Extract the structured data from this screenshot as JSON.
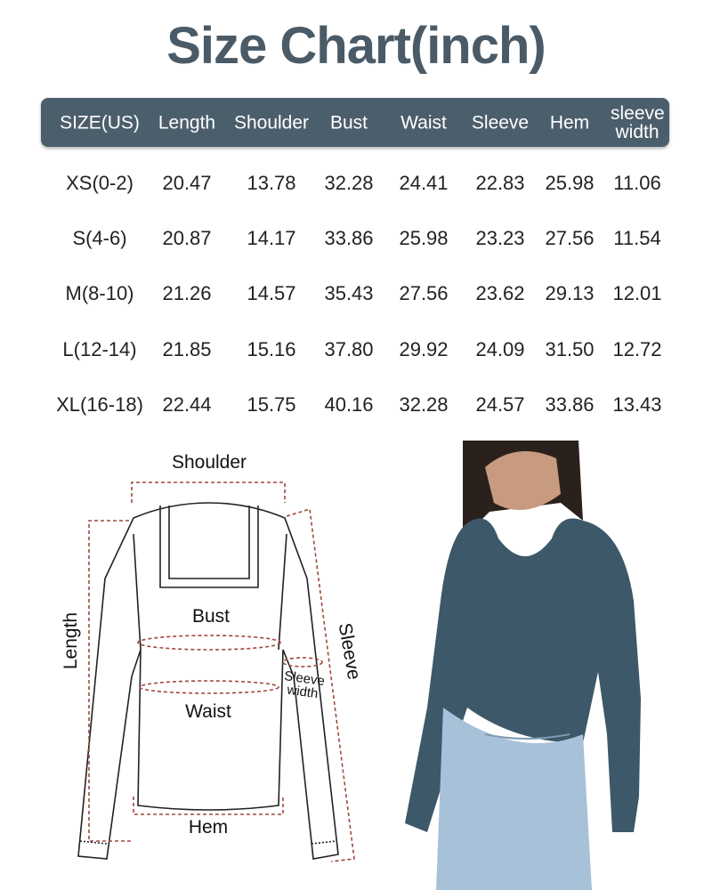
{
  "title": "Size Chart(inch)",
  "table": {
    "headers": [
      "SIZE(US)",
      "Length",
      "Shoulder",
      "Bust",
      "Waist",
      "Sleeve",
      "Hem",
      "sleeve width"
    ],
    "rows": [
      [
        "XS(0-2)",
        "20.47",
        "13.78",
        "32.28",
        "24.41",
        "22.83",
        "25.98",
        "11.06"
      ],
      [
        "S(4-6)",
        "20.87",
        "14.17",
        "33.86",
        "25.98",
        "23.23",
        "27.56",
        "11.54"
      ],
      [
        "M(8-10)",
        "21.26",
        "14.57",
        "35.43",
        "27.56",
        "23.62",
        "29.13",
        "12.01"
      ],
      [
        "L(12-14)",
        "21.85",
        "15.16",
        "37.80",
        "29.92",
        "24.09",
        "31.50",
        "12.72"
      ],
      [
        "XL(16-18)",
        "22.44",
        "15.75",
        "40.16",
        "32.28",
        "24.57",
        "33.86",
        "13.43"
      ]
    ]
  },
  "diagram": {
    "shoulder": "Shoulder",
    "bust": "Bust",
    "waist": "Waist",
    "hem": "Hem",
    "length": "Length",
    "sleeve": "Sleeve",
    "sleeve_width_1": "Sleeve",
    "sleeve_width_2": "width"
  },
  "colors": {
    "header": "#4b5e6c",
    "measure_line": "#a0483c",
    "top": "#3d5868"
  }
}
